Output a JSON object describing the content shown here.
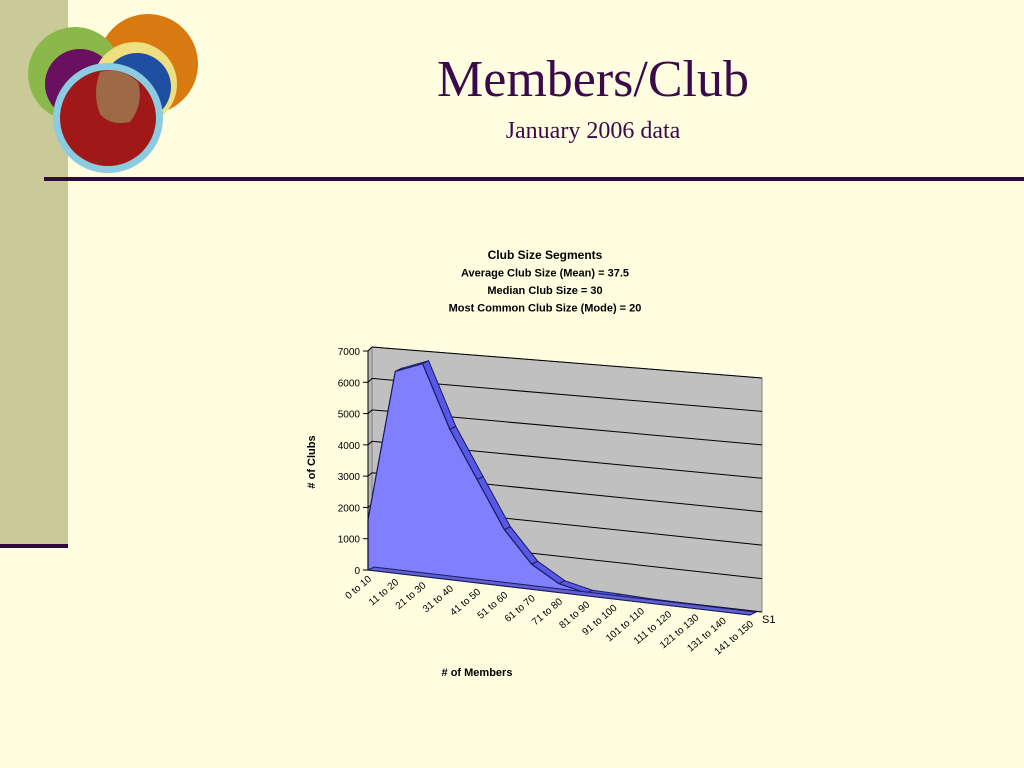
{
  "slide": {
    "title": "Members/Club",
    "subtitle": "January 2006 data"
  },
  "colors": {
    "background": "#FFFDE0",
    "sidebar": "#CACA98",
    "rule": "#2E0A3A",
    "title_text": "#3A0A4A",
    "area_fill": "#8080FF",
    "area_edge": "#5858E6",
    "plot_wall": "#C0C0C0"
  },
  "chart_data": {
    "type": "area",
    "style": "3d",
    "title_lines": [
      "Club Size Segments",
      "Average Club Size (Mean) = 37.5",
      "Median Club Size = 30",
      "Most Common Club Size (Mode) = 20"
    ],
    "xlabel": "# of Members",
    "ylabel": "# of Clubs",
    "ylim": [
      0,
      7000
    ],
    "yticks": [
      0,
      1000,
      2000,
      3000,
      4000,
      5000,
      6000,
      7000
    ],
    "grid": true,
    "categories": [
      "0 to 10",
      "11 to 20",
      "21 to 30",
      "31 to 40",
      "41 to 50",
      "51 to 60",
      "61 to 70",
      "71 to 80",
      "81 to 90",
      "91 to 100",
      "101 to 110",
      "111 to 120",
      "121 to 130",
      "131 to 140",
      "141 to 150"
    ],
    "series": [
      {
        "name": "S1",
        "values": [
          1600,
          6450,
          6800,
          4800,
          3300,
          1800,
          800,
          280,
          80,
          60,
          30,
          20,
          10,
          5,
          3
        ]
      }
    ]
  }
}
